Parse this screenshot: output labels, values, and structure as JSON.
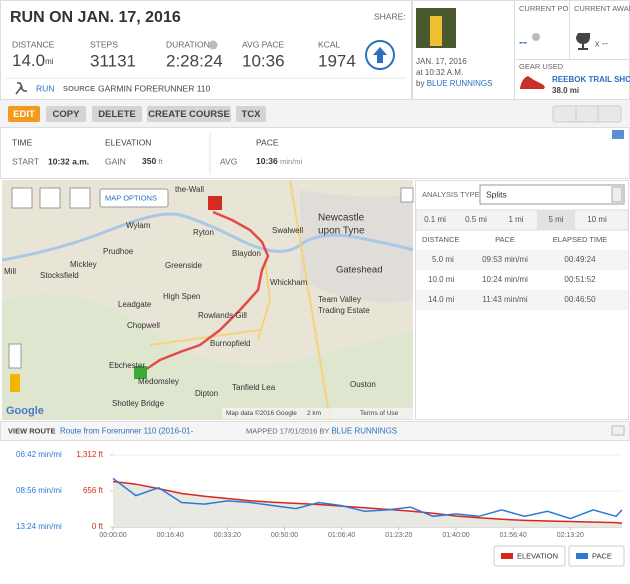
{
  "header": {
    "title": "RUN ON JAN. 17, 2016",
    "share": "SHARE:"
  },
  "stats": [
    {
      "label": "DISTANCE",
      "value": "14.0",
      "unit": "mi"
    },
    {
      "label": "STEPS",
      "value": "31131"
    },
    {
      "label": "DURATION",
      "value": "2:28:24"
    },
    {
      "label": "AVG PACE",
      "value": "10:36"
    },
    {
      "label": "KCAL",
      "value": "1974"
    }
  ],
  "activity": {
    "type": "RUN",
    "source_label": "SOURCE",
    "source": "GARMIN FORERUNNER 110"
  },
  "profile": {
    "date": "JAN. 17, 2016",
    "time": "at 10:32 A.M.",
    "by": "by",
    "user": "BLUE RUNNINGS"
  },
  "points": {
    "label": "CURRENT POINTS",
    "value": "--"
  },
  "awards": {
    "label": "CURRENT AWARDS",
    "value": "x --"
  },
  "gear": {
    "label": "GEAR USED",
    "name": "REEBOK TRAIL SHO...",
    "distance": "38.0 mi"
  },
  "buttons": [
    "EDIT",
    "COPY",
    "DELETE",
    "CREATE COURSE",
    "TCX"
  ],
  "summary": {
    "time": {
      "label": "TIME",
      "key": "START",
      "value": "10:32 a.m."
    },
    "elevation": {
      "label": "ELEVATION",
      "key": "GAIN",
      "value": "350",
      "unit": "ft"
    },
    "pace": {
      "label": "PACE",
      "key": "AVG",
      "value": "10:36",
      "unit": "min/mi"
    }
  },
  "map": {
    "places": [
      "the-Wall",
      "Wylam",
      "Prudhoe",
      "Mickley",
      "Stocksfield",
      "Mill",
      "Ryton",
      "Blaydon",
      "Swalwell",
      "Newcastle",
      "upon Tyne",
      "Gateshead",
      "Whickham",
      "Greenside",
      "Leadgate",
      "High Spen",
      "Rowlands Gill",
      "Team Valley",
      "Trading Estate",
      "Chopwell",
      "Burnopfield",
      "Ebchester",
      "Medomsley",
      "Dipton",
      "Tanfield Lea",
      "Ouston",
      "Shotley Bridge"
    ],
    "options": "MAP OPTIONS",
    "logo": "Google",
    "attribution": "Map data ©2016 Google",
    "scale": "2 km",
    "terms": "Terms of Use"
  },
  "analysis": {
    "label": "ANALYSIS TYPE:",
    "type": "Splits",
    "tabs": [
      "0.1 mi",
      "0.5 mi",
      "1 mi",
      "5 mi",
      "10 mi"
    ],
    "columns": [
      "DISTANCE",
      "PACE",
      "ELAPSED TIME"
    ],
    "rows": [
      [
        "5.0 mi",
        "09:53 min/mi",
        "00:49:24"
      ],
      [
        "10.0 mi",
        "10:24 min/mi",
        "00:51:52"
      ],
      [
        "14.0 mi",
        "11:43 min/mi",
        "00:46:50"
      ]
    ]
  },
  "route": {
    "label": "VIEW ROUTE",
    "name": "Route from Forerunner 110 (2016-01-",
    "mapped": "MAPPED 17/01/2016 BY",
    "user": "BLUE RUNNINGS"
  },
  "chart_data": {
    "type": "line",
    "x": [
      0,
      400,
      800,
      1200,
      1600,
      2000,
      2400,
      2800,
      3200,
      3600,
      4000,
      4400,
      4800,
      5200,
      5600,
      6000,
      6400,
      6800,
      7200,
      7600,
      8000,
      8400,
      8800,
      8904
    ],
    "series": [
      {
        "name": "ELEVATION",
        "color": "#d9261c",
        "values": [
          830,
          780,
          700,
          610,
          560,
          520,
          480,
          450,
          430,
          410,
          380,
          350,
          320,
          290,
          250,
          200,
          170,
          140,
          120,
          110,
          100,
          90,
          80,
          70
        ]
      },
      {
        "name": "PACE",
        "color": "#2b7bd6",
        "axis": "y2",
        "values": [
          480,
          560,
          520,
          600,
          610,
          590,
          600,
          620,
          640,
          600,
          620,
          660,
          650,
          630,
          700,
          680,
          700,
          650,
          700,
          660,
          720,
          650,
          700,
          650
        ]
      }
    ],
    "xlim": [
      0,
      8904
    ],
    "xticks": [
      {
        "value": 0,
        "label": "00:00:00"
      },
      {
        "value": 1000,
        "label": "00:16:40"
      },
      {
        "value": 2000,
        "label": "00:33:20"
      },
      {
        "value": 3000,
        "label": "00:50:00"
      },
      {
        "value": 4000,
        "label": "01:06:40"
      },
      {
        "value": 5000,
        "label": "01:23:20"
      },
      {
        "value": 6000,
        "label": "01:40:00"
      },
      {
        "value": 7000,
        "label": "01:56:40"
      },
      {
        "value": 8000,
        "label": "02:13:20"
      }
    ],
    "ylim": [
      0,
      1312
    ],
    "yticks": [
      {
        "value": 0,
        "label": "0 ft"
      },
      {
        "value": 656,
        "label": "656 ft"
      },
      {
        "value": 1312,
        "label": "1,312 ft"
      }
    ],
    "y2lim": [
      804,
      402
    ],
    "y2scale": "reciprocal",
    "y2ticks": [
      {
        "value": 804,
        "label": "13:24 min/mi"
      },
      {
        "value": 536,
        "label": "08:56 min/mi"
      },
      {
        "value": 402,
        "label": "06:42 min/mi"
      }
    ],
    "grid": true
  }
}
